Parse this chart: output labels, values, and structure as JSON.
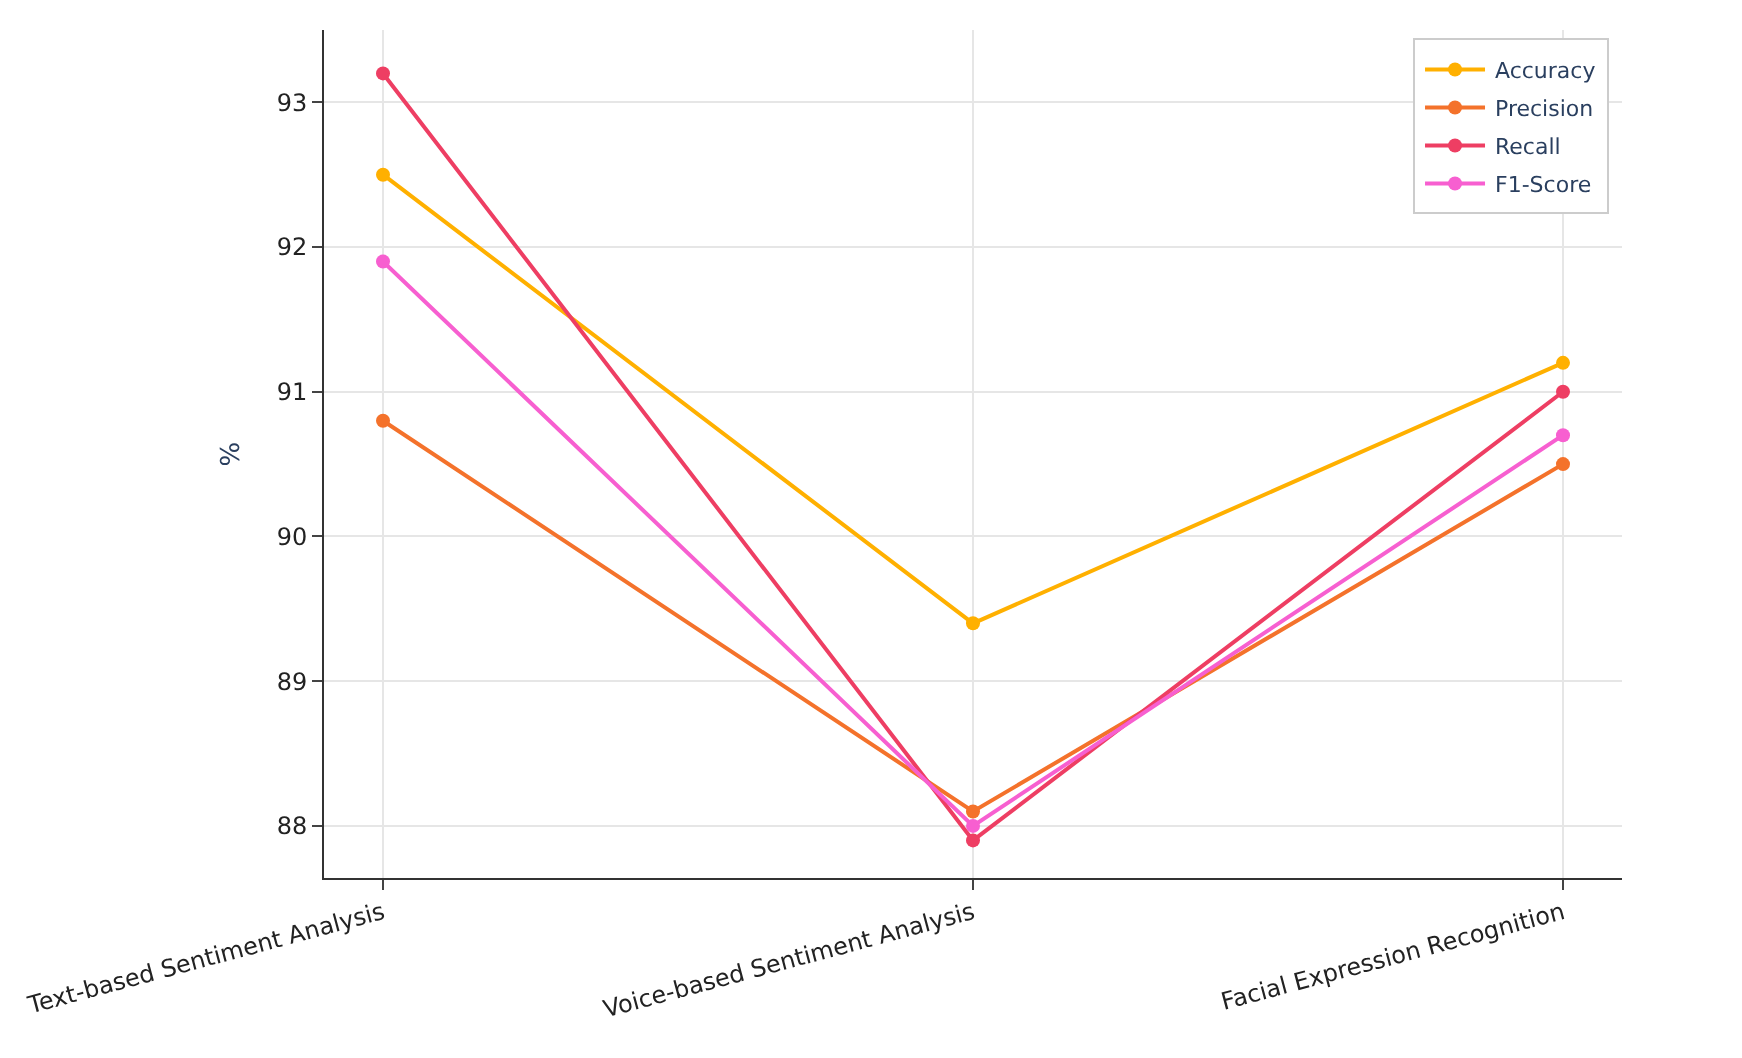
{
  "chart_data": {
    "type": "line",
    "ylabel": "%",
    "categories": [
      "Text-based Sentiment Analysis",
      "Voice-based Sentiment Analysis",
      "Facial Expression Recognition"
    ],
    "series": [
      {
        "name": "Accuracy",
        "color": "#ffb000",
        "values": [
          92.5,
          89.4,
          91.2
        ]
      },
      {
        "name": "Precision",
        "color": "#f4722b",
        "values": [
          90.8,
          88.1,
          90.5
        ]
      },
      {
        "name": "Recall",
        "color": "#ee3e63",
        "values": [
          93.2,
          87.9,
          91.0
        ]
      },
      {
        "name": "F1-Score",
        "color": "#f75fd0",
        "values": [
          91.9,
          88.0,
          90.7
        ]
      }
    ],
    "ylim": [
      87.64,
      93.5
    ],
    "yticks": [
      88,
      89,
      90,
      91,
      92,
      93
    ],
    "grid": true,
    "legend": "top right",
    "marker": "circle",
    "line_style": "solid"
  }
}
